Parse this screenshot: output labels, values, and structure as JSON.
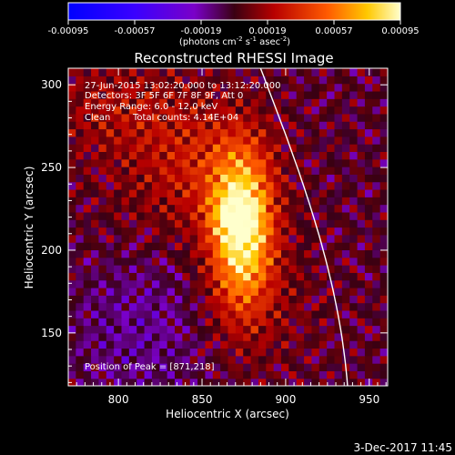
{
  "chart_data": {
    "type": "heatmap",
    "title": "Reconstructed RHESSI Image",
    "xlabel": "Heliocentric X (arcsec)",
    "ylabel": "Heliocentric Y (arcsec)",
    "xlim": [
      770,
      961
    ],
    "ylim": [
      118,
      310
    ],
    "x_ticks": [
      800,
      850,
      900,
      950
    ],
    "y_ticks": [
      150,
      200,
      250,
      300
    ],
    "colorbar": {
      "range": [
        -0.00095,
        0.00095
      ],
      "tick_values": [
        -0.00095,
        -0.00057,
        -0.00019,
        0.00019,
        0.00057,
        0.00095
      ],
      "tick_labels": [
        "-0.00095",
        "-0.00057",
        "-0.00019",
        "0.00019",
        "0.00057",
        "0.00095"
      ],
      "units_main": "(photons cm",
      "units_exp1": "-2",
      "units_mid1": " s",
      "units_exp2": "-1",
      "units_mid2": " asec",
      "units_exp3": "-2",
      "units_end": ")"
    },
    "annotations": {
      "time": "27-Jun-2015 13:02:20.000 to 13:12:20.000",
      "detectors": "Detectors: 3F 5F 6F 7F 8F 9F, Att 0",
      "energy": "Energy Range: 6.0 - 12.0 keV",
      "clean": "Clean",
      "counts": "Total counts: 4.14E+04",
      "peak": "Position of Peak = [871,218]"
    },
    "peak": [
      871,
      218
    ],
    "sources": [
      {
        "x": 874,
        "y": 213,
        "sx": 13,
        "sy": 32,
        "amp": 0.00095
      },
      {
        "x": 868,
        "y": 220,
        "sx": 9,
        "sy": 9,
        "amp": 0.00022
      },
      {
        "x": 850,
        "y": 250,
        "sx": 28,
        "sy": 28,
        "amp": 0.00028
      },
      {
        "x": 800,
        "y": 285,
        "sx": 30,
        "sy": 22,
        "amp": 0.0002
      },
      {
        "x": 805,
        "y": 215,
        "sx": 24,
        "sy": 25,
        "amp": 5e-05
      },
      {
        "x": 880,
        "y": 165,
        "sx": 30,
        "sy": 28,
        "amp": 0.00012
      },
      {
        "x": 815,
        "y": 155,
        "sx": 30,
        "sy": 35,
        "amp": -0.00018
      }
    ],
    "limb": {
      "x_at_ymax": 885,
      "x_at_ymin": 937
    },
    "footer_date": "3-Dec-2017 11:45"
  }
}
